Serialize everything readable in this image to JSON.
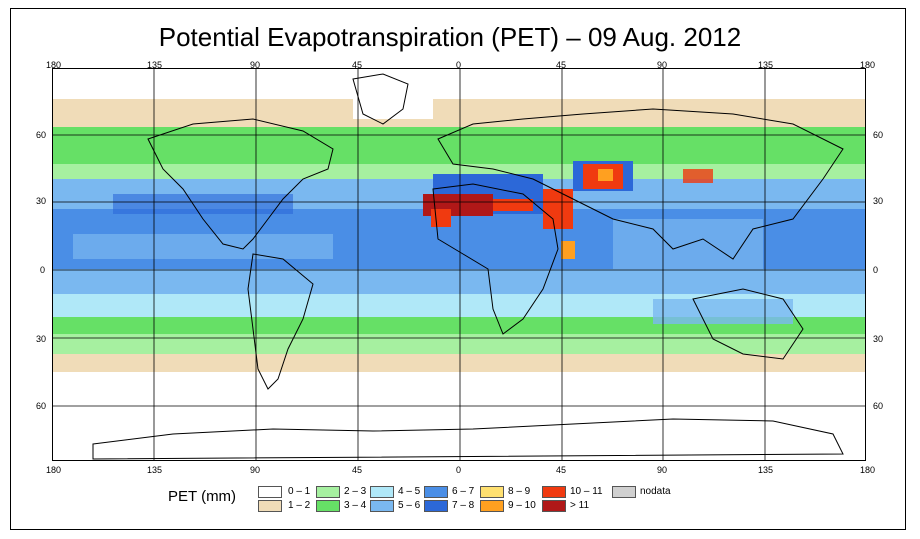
{
  "title": "Potential Evapotranspiration (PET) – 09 Aug. 2012",
  "axes": {
    "lon_top": [
      "180",
      "135",
      "90",
      "45",
      "0",
      "45",
      "90",
      "135",
      "180"
    ],
    "lon_bottom": [
      "180",
      "135",
      "90",
      "45",
      "0",
      "45",
      "90",
      "135",
      "180"
    ],
    "lat_left": [
      "60",
      "30",
      "0",
      "30",
      "60"
    ],
    "lat_right": [
      "60",
      "30",
      "0",
      "30",
      "60"
    ]
  },
  "legend": {
    "title": "PET (mm)",
    "items": [
      {
        "label": "0 – 1",
        "color": "#ffffff"
      },
      {
        "label": "1 – 2",
        "color": "#f0dcb8"
      },
      {
        "label": "2 – 3",
        "color": "#a6f0a0"
      },
      {
        "label": "3 – 4",
        "color": "#66e066"
      },
      {
        "label": "4 – 5",
        "color": "#b0e8f8"
      },
      {
        "label": "5 – 6",
        "color": "#7ab8f0"
      },
      {
        "label": "6 – 7",
        "color": "#4a8ee6"
      },
      {
        "label": "7 – 8",
        "color": "#2c68d8"
      },
      {
        "label": "8 – 9",
        "color": "#ffe070"
      },
      {
        "label": "9 – 10",
        "color": "#ffa020"
      },
      {
        "label": "10 – 11",
        "color": "#f03a10"
      },
      {
        "label": "> 11",
        "color": "#b01818"
      },
      {
        "label": "nodata",
        "color": "#d0d0d0"
      }
    ]
  }
}
